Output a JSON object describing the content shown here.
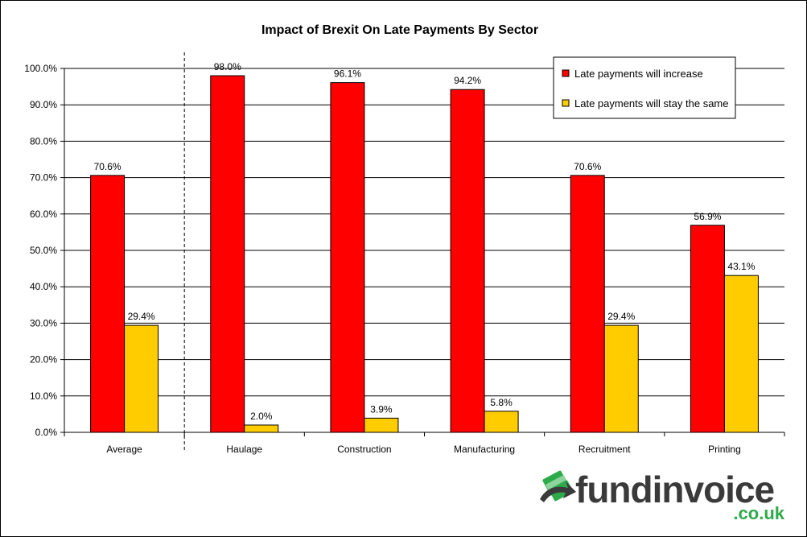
{
  "chart_data": {
    "type": "bar",
    "title": "Impact of Brexit On Late Payments By Sector",
    "categories": [
      "Average",
      "Haulage",
      "Construction",
      "Manufacturing",
      "Recruitment",
      "Printing"
    ],
    "series": [
      {
        "name": "Late payments will increase",
        "values": [
          70.6,
          98.0,
          96.1,
          94.2,
          70.6,
          56.9
        ],
        "labels": [
          "70.6%",
          "98.0%",
          "96.1%",
          "94.2%",
          "70.6%",
          "56.9%"
        ],
        "color": "#ff0000"
      },
      {
        "name": "Late payments will stay the same",
        "values": [
          29.4,
          2.0,
          3.9,
          5.8,
          29.4,
          43.1
        ],
        "labels": [
          "29.4%",
          "2.0%",
          "3.9%",
          "5.8%",
          "29.4%",
          "43.1%"
        ],
        "color": "#ffcc00"
      }
    ],
    "ylim": [
      0,
      100
    ],
    "yticks": [
      0,
      10,
      20,
      30,
      40,
      50,
      60,
      70,
      80,
      90,
      100
    ],
    "ytick_labels": [
      "0.0%",
      "10.0%",
      "20.0%",
      "30.0%",
      "40.0%",
      "50.0%",
      "60.0%",
      "70.0%",
      "80.0%",
      "90.0%",
      "100.0%"
    ],
    "grid": true,
    "legend_position": "top-right",
    "separator_after_category": "Average"
  },
  "logo": {
    "word_part1": "fund",
    "word_part2": "invoice",
    "domain": ".co.uk",
    "word_color": "#3a3a3a",
    "accent_color": "#2daa4a"
  }
}
